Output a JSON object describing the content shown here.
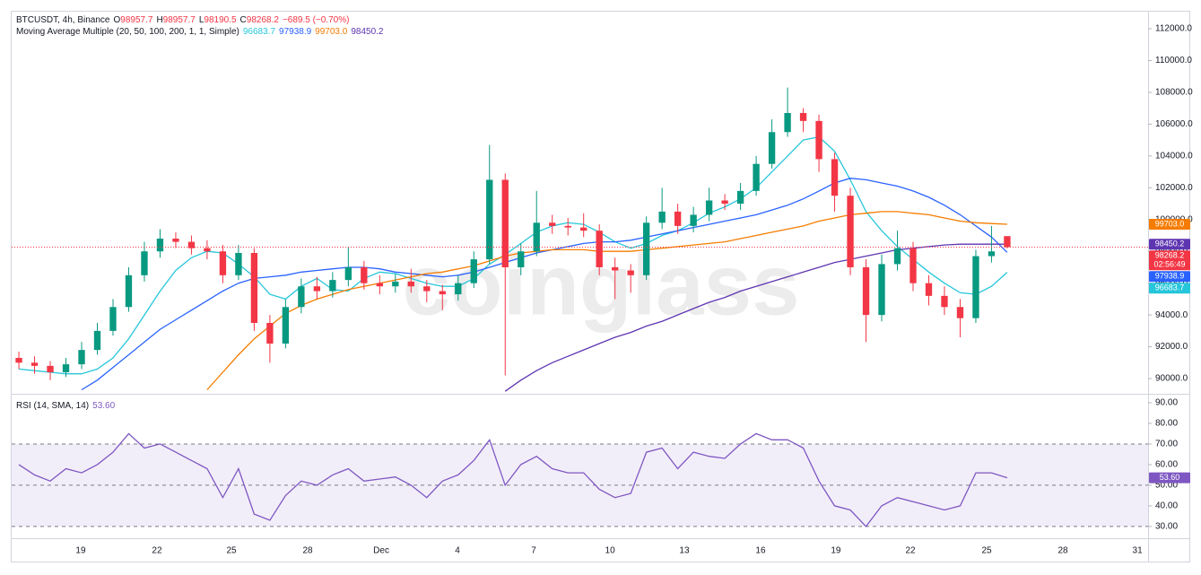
{
  "chart_data": {
    "type": "candlestick",
    "symbol": "BTCUSDT, 4h, Binance",
    "ohlc_keys": [
      "O",
      "H",
      "L",
      "C"
    ],
    "change": "−689.5 (−0.70%)",
    "legend_title": "Moving Average Multiple (20, 50, 100, 200, 1, 1, Simple)",
    "watermark": "coinglass",
    "countdown": "02:56:49",
    "up_color": "#089981",
    "down_color": "#f23645",
    "xlim": [
      -0.46,
      71.98
    ],
    "xticks": [
      {
        "value": 3.94,
        "label": "19"
      },
      {
        "value": 8.8,
        "label": "22"
      },
      {
        "value": 13.55,
        "label": "25"
      },
      {
        "value": 18.41,
        "label": "28"
      },
      {
        "value": 23.1,
        "label": "Dec"
      },
      {
        "value": 27.96,
        "label": "4"
      },
      {
        "value": 32.82,
        "label": "7"
      },
      {
        "value": 37.68,
        "label": "10"
      },
      {
        "value": 42.42,
        "label": "13"
      },
      {
        "value": 47.28,
        "label": "16"
      },
      {
        "value": 52.08,
        "label": "19"
      },
      {
        "value": 56.83,
        "label": "22"
      },
      {
        "value": 61.69,
        "label": "25"
      },
      {
        "value": 66.55,
        "label": "28"
      },
      {
        "value": 71.3,
        "label": "31"
      }
    ],
    "ylim": [
      89100,
      113130
    ],
    "yticks": [
      {
        "value": 90000,
        "label": "90000.0"
      },
      {
        "value": 92000,
        "label": "92000.0"
      },
      {
        "value": 94000,
        "label": "94000.0"
      },
      {
        "value": 96000,
        "label": "96000.0"
      },
      {
        "value": 98000,
        "label": "98000.0"
      },
      {
        "value": 100000,
        "label": "100000.0"
      },
      {
        "value": 102000,
        "label": "102000.0"
      },
      {
        "value": 104000,
        "label": "104000.0"
      },
      {
        "value": 106000,
        "label": "106000.0"
      },
      {
        "value": 108000,
        "label": "108000.0"
      },
      {
        "value": 110000,
        "label": "110000.0"
      },
      {
        "value": 112000,
        "label": "112000.0"
      }
    ],
    "grid": false,
    "candles": [
      [
        91300,
        91700,
        90600,
        91000
      ],
      [
        91000,
        91400,
        90300,
        90800
      ],
      [
        90800,
        91100,
        89900,
        90400
      ],
      [
        90400,
        91300,
        90100,
        90900
      ],
      [
        90900,
        92300,
        90600,
        91800
      ],
      [
        91800,
        93500,
        91500,
        93000
      ],
      [
        93000,
        95000,
        92700,
        94500
      ],
      [
        94500,
        97000,
        94200,
        96500
      ],
      [
        96500,
        98600,
        96100,
        98000
      ],
      [
        98000,
        99400,
        97600,
        98800
      ],
      [
        98800,
        99200,
        98200,
        98600
      ],
      [
        98600,
        99000,
        97800,
        98200
      ],
      [
        98200,
        98700,
        97500,
        98000
      ],
      [
        98000,
        98400,
        96000,
        96500
      ],
      [
        96500,
        98400,
        96200,
        97900
      ],
      [
        97900,
        98200,
        93000,
        93500
      ],
      [
        93500,
        94000,
        91000,
        92200
      ],
      [
        92200,
        95000,
        91900,
        94500
      ],
      [
        94500,
        96300,
        94100,
        95800
      ],
      [
        95800,
        96400,
        95000,
        95500
      ],
      [
        95500,
        96700,
        95100,
        96200
      ],
      [
        96200,
        98300,
        95800,
        97000
      ],
      [
        97000,
        97400,
        95600,
        96000
      ],
      [
        96000,
        96500,
        95300,
        95800
      ],
      [
        95800,
        96600,
        95400,
        96100
      ],
      [
        96100,
        96900,
        95400,
        95800
      ],
      [
        95800,
        96200,
        94800,
        95500
      ],
      [
        95500,
        95900,
        94300,
        95300
      ],
      [
        95300,
        96500,
        94900,
        96000
      ],
      [
        96000,
        98000,
        95700,
        97500
      ],
      [
        97500,
        104700,
        97200,
        102500
      ],
      [
        102500,
        102900,
        90200,
        97000
      ],
      [
        97000,
        98500,
        96500,
        98000
      ],
      [
        98000,
        101800,
        97700,
        99800
      ],
      [
        99800,
        100300,
        99100,
        99600
      ],
      [
        99600,
        100100,
        99000,
        99500
      ],
      [
        99500,
        100400,
        98900,
        99300
      ],
      [
        99300,
        99700,
        96500,
        97000
      ],
      [
        97000,
        97600,
        95000,
        96800
      ],
      [
        96800,
        97200,
        95400,
        96500
      ],
      [
        96500,
        100200,
        96200,
        99800
      ],
      [
        99800,
        102000,
        99400,
        100500
      ],
      [
        100500,
        101000,
        99100,
        99600
      ],
      [
        99600,
        100800,
        99200,
        100300
      ],
      [
        100300,
        102000,
        99900,
        101200
      ],
      [
        101200,
        101600,
        100600,
        101000
      ],
      [
        101000,
        102300,
        100600,
        101800
      ],
      [
        101800,
        104000,
        101500,
        103500
      ],
      [
        103500,
        106300,
        103200,
        105500
      ],
      [
        105500,
        108300,
        105200,
        106700
      ],
      [
        106700,
        107000,
        105500,
        106200
      ],
      [
        106200,
        106600,
        103000,
        103800
      ],
      [
        103800,
        104200,
        100500,
        101500
      ],
      [
        101500,
        102000,
        96500,
        97000
      ],
      [
        97000,
        97500,
        92300,
        94000
      ],
      [
        94000,
        97800,
        93600,
        97200
      ],
      [
        97200,
        99300,
        96800,
        98200
      ],
      [
        98200,
        98600,
        95500,
        96000
      ],
      [
        96000,
        96500,
        94600,
        95200
      ],
      [
        95200,
        95800,
        94000,
        94500
      ],
      [
        94500,
        95000,
        92600,
        93800
      ],
      [
        93800,
        98100,
        93500,
        97700
      ],
      [
        97700,
        99600,
        97300,
        98000
      ],
      [
        98957.7,
        98957.7,
        98190.5,
        98268.2
      ]
    ],
    "series": [
      {
        "color": "#26c6da",
        "last_label": "96683.7",
        "values": [
          90600,
          90500,
          90400,
          90300,
          90300,
          90600,
          91300,
          92500,
          94000,
          95500,
          96800,
          97600,
          98000,
          97900,
          97200,
          96400,
          95300,
          95000,
          95800,
          96300,
          95600,
          95500,
          96300,
          96700,
          96600,
          96300,
          96000,
          95800,
          95800,
          96300,
          97200,
          97800,
          98500,
          99200,
          99600,
          99800,
          99700,
          99200,
          98600,
          98200,
          98500,
          99000,
          99300,
          99800,
          100400,
          100800,
          101300,
          102000,
          103000,
          104000,
          105000,
          105200,
          104300,
          102500,
          100500,
          99300,
          98300,
          97500,
          96700,
          96000,
          95400,
          95300,
          95800,
          96683.7
        ]
      },
      {
        "color": "#2962ff",
        "last_label": "97938.9",
        "values": [
          null,
          null,
          null,
          null,
          89300,
          89900,
          90700,
          91500,
          92300,
          93100,
          93700,
          94300,
          94900,
          95500,
          96000,
          96300,
          96400,
          96500,
          96700,
          96800,
          96900,
          97000,
          97000,
          96900,
          96700,
          96600,
          96500,
          96400,
          96500,
          96700,
          97000,
          97300,
          97600,
          97900,
          98100,
          98300,
          98500,
          98600,
          98600,
          98700,
          98900,
          99100,
          99300,
          99500,
          99700,
          99900,
          100100,
          100300,
          100600,
          100900,
          101300,
          101800,
          102300,
          102600,
          102500,
          102300,
          102100,
          101800,
          101400,
          100900,
          100300,
          99600,
          98900,
          97938.9
        ]
      },
      {
        "color": "#f57c00",
        "last_label": "99703.0",
        "values": [
          null,
          null,
          null,
          null,
          null,
          null,
          null,
          null,
          null,
          null,
          null,
          null,
          89300,
          90400,
          91500,
          92500,
          93300,
          94100,
          94600,
          95000,
          95300,
          95600,
          95800,
          96000,
          96200,
          96400,
          96600,
          96700,
          96900,
          97100,
          97400,
          97700,
          97900,
          98000,
          98100,
          98100,
          98100,
          98000,
          98000,
          98000,
          98100,
          98200,
          98300,
          98400,
          98500,
          98600,
          98800,
          99000,
          99200,
          99400,
          99600,
          99900,
          100100,
          100300,
          100400,
          100500,
          100500,
          100400,
          100300,
          100100,
          99900,
          99800,
          99750,
          99703
        ]
      },
      {
        "color": "#5e35b1",
        "last_label": "98450.2",
        "values": [
          null,
          null,
          null,
          null,
          null,
          null,
          null,
          null,
          null,
          null,
          null,
          null,
          null,
          null,
          null,
          null,
          null,
          null,
          null,
          null,
          null,
          null,
          null,
          null,
          null,
          null,
          null,
          null,
          null,
          null,
          null,
          89200,
          89900,
          90500,
          91000,
          91400,
          91800,
          92200,
          92600,
          92900,
          93300,
          93600,
          94000,
          94400,
          94800,
          95100,
          95500,
          95800,
          96100,
          96400,
          96700,
          97000,
          97300,
          97500,
          97700,
          97900,
          98100,
          98200,
          98300,
          98400,
          98450,
          98450,
          98450,
          98450.2
        ]
      }
    ],
    "rsi": {
      "type": "line",
      "title": "RSI (14, SMA, 14)",
      "value_label": "53.60",
      "color": "#7e57c2",
      "ylim": [
        24.3,
        93.9
      ],
      "yticks": [
        {
          "value": 30,
          "label": "30.00"
        },
        {
          "value": 40,
          "label": "40.00"
        },
        {
          "value": 50,
          "label": "50.00"
        },
        {
          "value": 60,
          "label": "60.00"
        },
        {
          "value": 70,
          "label": "70.00"
        },
        {
          "value": 80,
          "label": "80.00"
        },
        {
          "value": 90,
          "label": "90.00"
        }
      ],
      "levels": [
        30,
        50,
        70
      ],
      "band": [
        30,
        70
      ],
      "values": [
        60,
        55,
        52,
        58,
        56,
        60,
        66,
        75,
        68,
        70,
        66,
        62,
        58,
        44,
        58,
        36,
        33,
        45,
        52,
        50,
        55,
        58,
        52,
        53,
        54,
        50,
        44,
        52,
        55,
        62,
        72,
        50,
        60,
        64,
        58,
        56,
        56,
        48,
        44,
        46,
        66,
        68,
        58,
        66,
        64,
        63,
        70,
        75,
        72,
        72,
        68,
        52,
        40,
        38,
        30,
        40,
        44,
        42,
        40,
        38,
        40,
        56,
        56,
        53.6
      ]
    }
  }
}
